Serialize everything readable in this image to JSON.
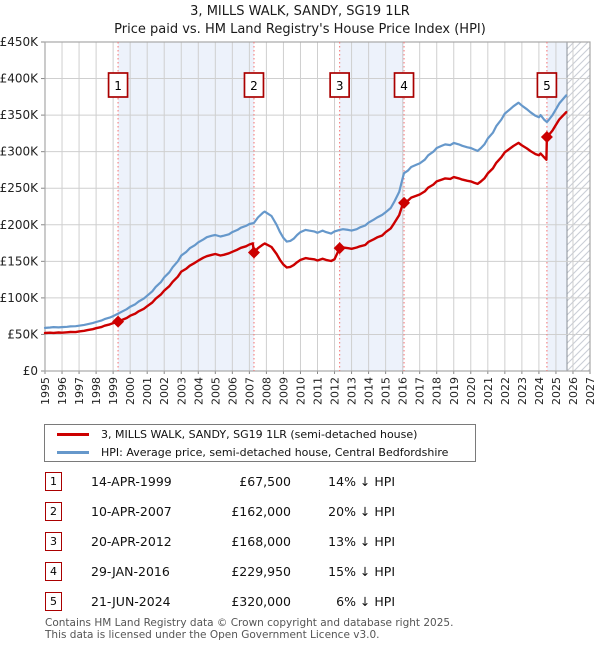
{
  "title": "3, MILLS WALK, SANDY, SG19 1LR",
  "subtitle": "Price paid vs. HM Land Registry's House Price Index (HPI)",
  "colors": {
    "price_paid": "#cc0000",
    "hpi": "#6698cb",
    "sale_dashed_line": "#f47c7c",
    "ownership_shade": "#edf2fb",
    "grid": "#cfcfcf",
    "plot_border": "#a8a8a8",
    "hatch_line": "#c9ced6",
    "hatch_boundary": "#8a9099",
    "marker_box_border": "#aa0000",
    "footer_text": "#555555"
  },
  "legend": {
    "items": [
      {
        "label": "3, MILLS WALK, SANDY, SG19 1LR (semi-detached house)",
        "series": "price_paid"
      },
      {
        "label": "HPI: Average price, semi-detached house, Central Bedfordshire",
        "series": "hpi"
      }
    ]
  },
  "sales_table": {
    "rows": [
      {
        "n": "1",
        "date": "14-APR-1999",
        "price": "£67,500",
        "hpi_diff": "14% ↓ HPI"
      },
      {
        "n": "2",
        "date": "10-APR-2007",
        "price": "£162,000",
        "hpi_diff": "20% ↓ HPI"
      },
      {
        "n": "3",
        "date": "20-APR-2012",
        "price": "£168,000",
        "hpi_diff": "13% ↓ HPI"
      },
      {
        "n": "4",
        "date": "29-JAN-2016",
        "price": "£229,950",
        "hpi_diff": "15% ↓ HPI"
      },
      {
        "n": "5",
        "date": "21-JUN-2024",
        "price": "£320,000",
        "hpi_diff": "6% ↓ HPI"
      }
    ]
  },
  "footer": {
    "line1": "Contains HM Land Registry data © Crown copyright and database right 2025.",
    "line2": "This data is licensed under the Open Government Licence v3.0."
  },
  "chart_data": {
    "type": "line",
    "units": "GBP thousands",
    "xlim": [
      1995,
      2027
    ],
    "ylim_k": [
      0,
      450
    ],
    "x_ticks": [
      1995,
      1996,
      1997,
      1998,
      1999,
      2000,
      2001,
      2002,
      2003,
      2004,
      2005,
      2006,
      2007,
      2008,
      2009,
      2010,
      2011,
      2012,
      2013,
      2014,
      2015,
      2016,
      2017,
      2018,
      2019,
      2020,
      2021,
      2022,
      2023,
      2024,
      2025,
      2026,
      2027
    ],
    "y_tick_values": [
      0,
      50,
      100,
      150,
      200,
      250,
      300,
      350,
      400,
      450
    ],
    "y_tick_labels": [
      "£0",
      "£50K",
      "£100K",
      "£150K",
      "£200K",
      "£250K",
      "£300K",
      "£350K",
      "£400K",
      "£450K"
    ],
    "shaded_spans": [
      [
        1999.29,
        2007.27
      ],
      [
        2012.3,
        2016.08
      ],
      [
        2024.47,
        2025.65
      ]
    ],
    "hatch_span": [
      2025.65,
      2027
    ],
    "sales": [
      {
        "n": "1",
        "x": 1999.29,
        "y": 67.5
      },
      {
        "n": "2",
        "x": 2007.27,
        "y": 162
      },
      {
        "n": "3",
        "x": 2012.3,
        "y": 168
      },
      {
        "n": "4",
        "x": 2016.08,
        "y": 229.95
      },
      {
        "n": "5",
        "x": 2024.47,
        "y": 320
      }
    ],
    "series": [
      {
        "name": "hpi",
        "color": "#6698cb",
        "width": 2.2,
        "points": [
          [
            1995.0,
            59
          ],
          [
            1995.3,
            59.5
          ],
          [
            1995.5,
            60
          ],
          [
            1995.8,
            59.6
          ],
          [
            1996.0,
            60
          ],
          [
            1996.3,
            60.5
          ],
          [
            1996.5,
            61
          ],
          [
            1996.8,
            61.3
          ],
          [
            1997.0,
            62
          ],
          [
            1997.3,
            63
          ],
          [
            1997.5,
            64
          ],
          [
            1997.8,
            65.5
          ],
          [
            1998.0,
            67
          ],
          [
            1998.3,
            69
          ],
          [
            1998.5,
            71
          ],
          [
            1998.8,
            73
          ],
          [
            1999.0,
            75
          ],
          [
            1999.29,
            78.5
          ],
          [
            1999.5,
            81
          ],
          [
            1999.8,
            84.5
          ],
          [
            2000.0,
            88
          ],
          [
            2000.3,
            91.3
          ],
          [
            2000.5,
            95
          ],
          [
            2000.8,
            99
          ],
          [
            2001.0,
            103
          ],
          [
            2001.3,
            109
          ],
          [
            2001.5,
            115
          ],
          [
            2001.8,
            121.5
          ],
          [
            2002.0,
            128
          ],
          [
            2002.3,
            135
          ],
          [
            2002.5,
            142
          ],
          [
            2002.8,
            150
          ],
          [
            2003.0,
            158
          ],
          [
            2003.3,
            163
          ],
          [
            2003.5,
            168
          ],
          [
            2003.8,
            172
          ],
          [
            2004.0,
            176
          ],
          [
            2004.3,
            180
          ],
          [
            2004.5,
            183
          ],
          [
            2004.8,
            185
          ],
          [
            2005.0,
            186
          ],
          [
            2005.3,
            184
          ],
          [
            2005.5,
            185
          ],
          [
            2005.8,
            187
          ],
          [
            2006.0,
            190
          ],
          [
            2006.3,
            193
          ],
          [
            2006.5,
            196
          ],
          [
            2006.8,
            198.5
          ],
          [
            2007.0,
            201
          ],
          [
            2007.27,
            202.5
          ],
          [
            2007.5,
            210
          ],
          [
            2007.8,
            216.5
          ],
          [
            2007.9,
            218
          ],
          [
            2008.1,
            215
          ],
          [
            2008.3,
            212
          ],
          [
            2008.6,
            200
          ],
          [
            2008.8,
            190
          ],
          [
            2009.0,
            182
          ],
          [
            2009.2,
            177
          ],
          [
            2009.4,
            178
          ],
          [
            2009.6,
            181
          ],
          [
            2009.8,
            186
          ],
          [
            2010.0,
            190
          ],
          [
            2010.3,
            193
          ],
          [
            2010.5,
            192
          ],
          [
            2010.8,
            191
          ],
          [
            2011.0,
            189
          ],
          [
            2011.3,
            192
          ],
          [
            2011.5,
            190
          ],
          [
            2011.8,
            188
          ],
          [
            2012.0,
            191
          ],
          [
            2012.3,
            193
          ],
          [
            2012.5,
            194
          ],
          [
            2012.8,
            193
          ],
          [
            2013.0,
            192
          ],
          [
            2013.3,
            194
          ],
          [
            2013.5,
            196.5
          ],
          [
            2013.8,
            199
          ],
          [
            2014.0,
            203
          ],
          [
            2014.3,
            207
          ],
          [
            2014.5,
            210
          ],
          [
            2014.8,
            213.5
          ],
          [
            2015.0,
            217
          ],
          [
            2015.3,
            223
          ],
          [
            2015.5,
            231
          ],
          [
            2015.8,
            245
          ],
          [
            2016.0,
            264
          ],
          [
            2016.08,
            270.5
          ],
          [
            2016.3,
            274
          ],
          [
            2016.5,
            279
          ],
          [
            2016.8,
            282
          ],
          [
            2017.0,
            284
          ],
          [
            2017.3,
            289
          ],
          [
            2017.5,
            295
          ],
          [
            2017.8,
            300
          ],
          [
            2018.0,
            305
          ],
          [
            2018.3,
            308
          ],
          [
            2018.5,
            310
          ],
          [
            2018.8,
            309
          ],
          [
            2019.0,
            312
          ],
          [
            2019.3,
            310
          ],
          [
            2019.5,
            308
          ],
          [
            2019.8,
            306
          ],
          [
            2020.0,
            305
          ],
          [
            2020.2,
            303
          ],
          [
            2020.4,
            301
          ],
          [
            2020.6,
            305
          ],
          [
            2020.8,
            310
          ],
          [
            2021.0,
            318
          ],
          [
            2021.3,
            326
          ],
          [
            2021.5,
            335
          ],
          [
            2021.8,
            344
          ],
          [
            2022.0,
            352
          ],
          [
            2022.3,
            358
          ],
          [
            2022.5,
            362
          ],
          [
            2022.8,
            367
          ],
          [
            2023.0,
            363
          ],
          [
            2023.3,
            358
          ],
          [
            2023.5,
            354
          ],
          [
            2023.8,
            349
          ],
          [
            2024.0,
            347
          ],
          [
            2024.1,
            350
          ],
          [
            2024.3,
            344
          ],
          [
            2024.47,
            340.4
          ],
          [
            2024.6,
            344
          ],
          [
            2024.8,
            350
          ],
          [
            2025.0,
            358
          ],
          [
            2025.2,
            366
          ],
          [
            2025.6,
            377
          ]
        ]
      },
      {
        "name": "price_paid",
        "color": "#cc0000",
        "width": 2.4,
        "points": [
          [
            1995.0,
            52
          ],
          [
            1995.3,
            52.4
          ],
          [
            1995.5,
            52.1
          ],
          [
            1995.8,
            52.6
          ],
          [
            1996.0,
            52.4
          ],
          [
            1996.3,
            53
          ],
          [
            1996.5,
            53.4
          ],
          [
            1996.8,
            53.2
          ],
          [
            1997.0,
            54.2
          ],
          [
            1997.3,
            55
          ],
          [
            1997.5,
            56
          ],
          [
            1997.8,
            57.2
          ],
          [
            1998.0,
            58.5
          ],
          [
            1998.3,
            60
          ],
          [
            1998.5,
            62
          ],
          [
            1998.8,
            63.8
          ],
          [
            1999.0,
            65.5
          ],
          [
            1999.29,
            67.5
          ],
          [
            1999.5,
            69.6
          ],
          [
            1999.8,
            72.5
          ],
          [
            2000.0,
            75.7
          ],
          [
            2000.3,
            78.5
          ],
          [
            2000.5,
            81.7
          ],
          [
            2000.8,
            85.1
          ],
          [
            2001.0,
            88.6
          ],
          [
            2001.3,
            93.7
          ],
          [
            2001.5,
            98.9
          ],
          [
            2001.8,
            104.5
          ],
          [
            2002.0,
            110
          ],
          [
            2002.3,
            116
          ],
          [
            2002.5,
            122
          ],
          [
            2002.8,
            129
          ],
          [
            2003.0,
            136
          ],
          [
            2003.3,
            140
          ],
          [
            2003.5,
            144
          ],
          [
            2003.8,
            148
          ],
          [
            2004.0,
            151
          ],
          [
            2004.3,
            155
          ],
          [
            2004.5,
            157
          ],
          [
            2004.8,
            159
          ],
          [
            2005.0,
            160
          ],
          [
            2005.3,
            158
          ],
          [
            2005.5,
            159
          ],
          [
            2005.8,
            161
          ],
          [
            2006.0,
            163
          ],
          [
            2006.3,
            166
          ],
          [
            2006.5,
            168.5
          ],
          [
            2006.8,
            170.5
          ],
          [
            2007.0,
            173
          ],
          [
            2007.2,
            174.5
          ],
          [
            2007.27,
            162
          ],
          [
            2007.5,
            168
          ],
          [
            2007.8,
            173
          ],
          [
            2007.9,
            174.4
          ],
          [
            2008.1,
            172
          ],
          [
            2008.3,
            169.6
          ],
          [
            2008.6,
            160
          ],
          [
            2008.8,
            152
          ],
          [
            2009.0,
            145.6
          ],
          [
            2009.2,
            141.6
          ],
          [
            2009.4,
            142.4
          ],
          [
            2009.6,
            144.8
          ],
          [
            2009.8,
            148.8
          ],
          [
            2010.0,
            152
          ],
          [
            2010.3,
            154.4
          ],
          [
            2010.5,
            153.6
          ],
          [
            2010.8,
            152.8
          ],
          [
            2011.0,
            151.2
          ],
          [
            2011.3,
            153.6
          ],
          [
            2011.5,
            152
          ],
          [
            2011.8,
            150.4
          ],
          [
            2012.0,
            152.8
          ],
          [
            2012.3,
            168
          ],
          [
            2012.5,
            168.9
          ],
          [
            2012.8,
            168
          ],
          [
            2013.0,
            167.1
          ],
          [
            2013.3,
            168.9
          ],
          [
            2013.5,
            170.6
          ],
          [
            2013.8,
            172.4
          ],
          [
            2014.0,
            176.7
          ],
          [
            2014.3,
            180.2
          ],
          [
            2014.5,
            182.8
          ],
          [
            2014.8,
            185.4
          ],
          [
            2015.0,
            189.8
          ],
          [
            2015.3,
            195
          ],
          [
            2015.5,
            202
          ],
          [
            2015.8,
            213.3
          ],
          [
            2016.0,
            228
          ],
          [
            2016.08,
            229.95
          ],
          [
            2016.3,
            233
          ],
          [
            2016.5,
            237.2
          ],
          [
            2016.8,
            239.7
          ],
          [
            2017.0,
            241.4
          ],
          [
            2017.3,
            245.7
          ],
          [
            2017.5,
            250.8
          ],
          [
            2017.8,
            255
          ],
          [
            2018.0,
            259.3
          ],
          [
            2018.3,
            261.8
          ],
          [
            2018.5,
            263.5
          ],
          [
            2018.8,
            262.7
          ],
          [
            2019.0,
            265.2
          ],
          [
            2019.3,
            263.5
          ],
          [
            2019.5,
            261.8
          ],
          [
            2019.8,
            260.1
          ],
          [
            2020.0,
            259.3
          ],
          [
            2020.2,
            257.6
          ],
          [
            2020.4,
            255.9
          ],
          [
            2020.6,
            259.3
          ],
          [
            2020.8,
            263.5
          ],
          [
            2021.0,
            270.3
          ],
          [
            2021.3,
            277.1
          ],
          [
            2021.5,
            284.8
          ],
          [
            2021.8,
            292.4
          ],
          [
            2022.0,
            299.2
          ],
          [
            2022.3,
            304.3
          ],
          [
            2022.5,
            307.7
          ],
          [
            2022.8,
            312
          ],
          [
            2023.0,
            308.6
          ],
          [
            2023.3,
            304.3
          ],
          [
            2023.5,
            300.9
          ],
          [
            2023.8,
            296.7
          ],
          [
            2024.0,
            295
          ],
          [
            2024.1,
            297.5
          ],
          [
            2024.3,
            292.4
          ],
          [
            2024.44,
            289
          ],
          [
            2024.47,
            320
          ],
          [
            2024.6,
            323.4
          ],
          [
            2024.8,
            329
          ],
          [
            2025.0,
            336.6
          ],
          [
            2025.2,
            344.1
          ],
          [
            2025.6,
            354
          ]
        ]
      }
    ]
  }
}
